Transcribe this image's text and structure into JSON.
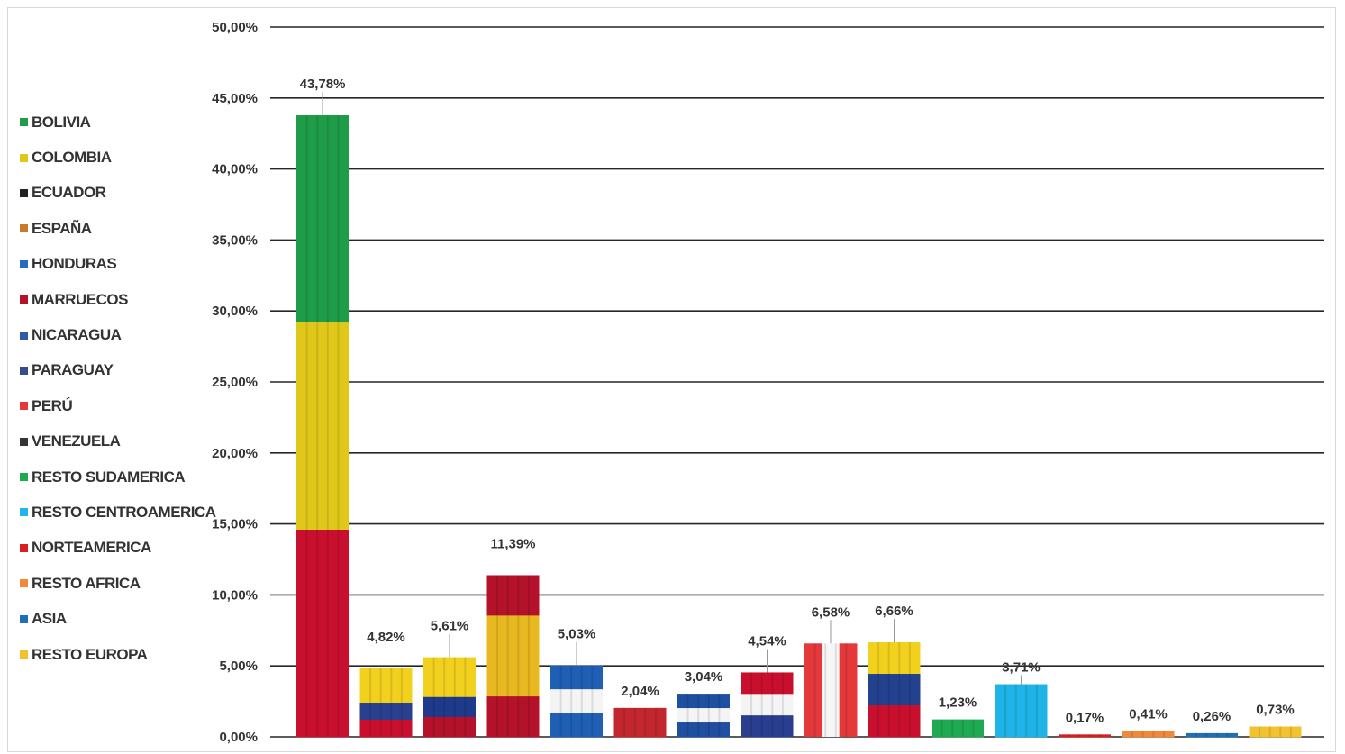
{
  "chart_data": {
    "type": "bar",
    "categories": [
      "BOLIVIA",
      "COLOMBIA",
      "ECUADOR",
      "ESPAÑA",
      "HONDURAS",
      "MARRUECOS",
      "NICARAGUA",
      "PARAGUAY",
      "PERÚ",
      "VENEZUELA",
      "RESTO SUDAMERICA",
      "RESTO CENTROAMERICA",
      "NORTEAMERICA",
      "RESTO AFRICA",
      "ASIA",
      "RESTO EUROPA"
    ],
    "values": [
      43.78,
      4.82,
      5.61,
      11.39,
      5.03,
      2.04,
      3.04,
      4.54,
      6.58,
      6.66,
      1.23,
      3.71,
      0.17,
      0.41,
      0.26,
      0.73
    ],
    "data_labels": [
      "43,78%",
      "4,82%",
      "5,61%",
      "11,39%",
      "5,03%",
      "2,04%",
      "3,04%",
      "4,54%",
      "6,58%",
      "6,66%",
      "1,23%",
      "3,71%",
      "0,17%",
      "0,41%",
      "0,26%",
      "0,73%"
    ],
    "y_ticks": [
      "0,00%",
      "5,00%",
      "10,00%",
      "15,00%",
      "20,00%",
      "25,00%",
      "30,00%",
      "35,00%",
      "40,00%",
      "45,00%",
      "50,00%"
    ],
    "ylim": [
      0,
      50
    ],
    "grid": true,
    "legend_position": "left",
    "title": "",
    "xlabel": "",
    "ylabel": "",
    "bar_fills": [
      [
        "#1e9c48",
        "#e0c81a",
        "#c8102e"
      ],
      [
        "#f2d01e",
        "#f2d01e",
        "#2b3f8f",
        "#c8102e"
      ],
      [
        "#f2d01e",
        "#f2d01e",
        "#1f3a8a",
        "#b3122a"
      ],
      [
        "#b3122a",
        "#e8b820",
        "#e8b820",
        "#b3122a"
      ],
      [
        "#1f5fb4",
        "#f4f4f4",
        "#1f5fb4"
      ],
      [
        "#c1272d"
      ],
      [
        "#1f4fa0",
        "#f4f4f4",
        "#1f4fa0"
      ],
      [
        "#c8102e",
        "#f4f4f4",
        "#2a3e90"
      ],
      [
        "#e5383b",
        "#f6f6f6",
        "#e5383b"
      ],
      [
        "#f2d01e",
        "#22418f",
        "#c8102e"
      ],
      [
        "#1eaa50"
      ],
      [
        "#1fb3e8"
      ],
      [
        "#d81e1e"
      ],
      [
        "#f08a3a"
      ],
      [
        "#1f6fb4"
      ],
      [
        "#f2c230"
      ]
    ],
    "bar_fill_direction": [
      "v",
      "v",
      "v",
      "v",
      "v",
      "v",
      "v",
      "v",
      "h",
      "v",
      "v",
      "v",
      "v",
      "v",
      "v",
      "v"
    ],
    "swatches": [
      "#1e9c48",
      "#e0c81a",
      "#222222",
      "#c87a2a",
      "#2a6bb8",
      "#b3122a",
      "#2a5aa8",
      "#3a4a8a",
      "#e5383b",
      "#333333",
      "#1eaa50",
      "#1fb3e8",
      "#d81e1e",
      "#f08a3a",
      "#1f6fb4",
      "#f2c230"
    ]
  }
}
